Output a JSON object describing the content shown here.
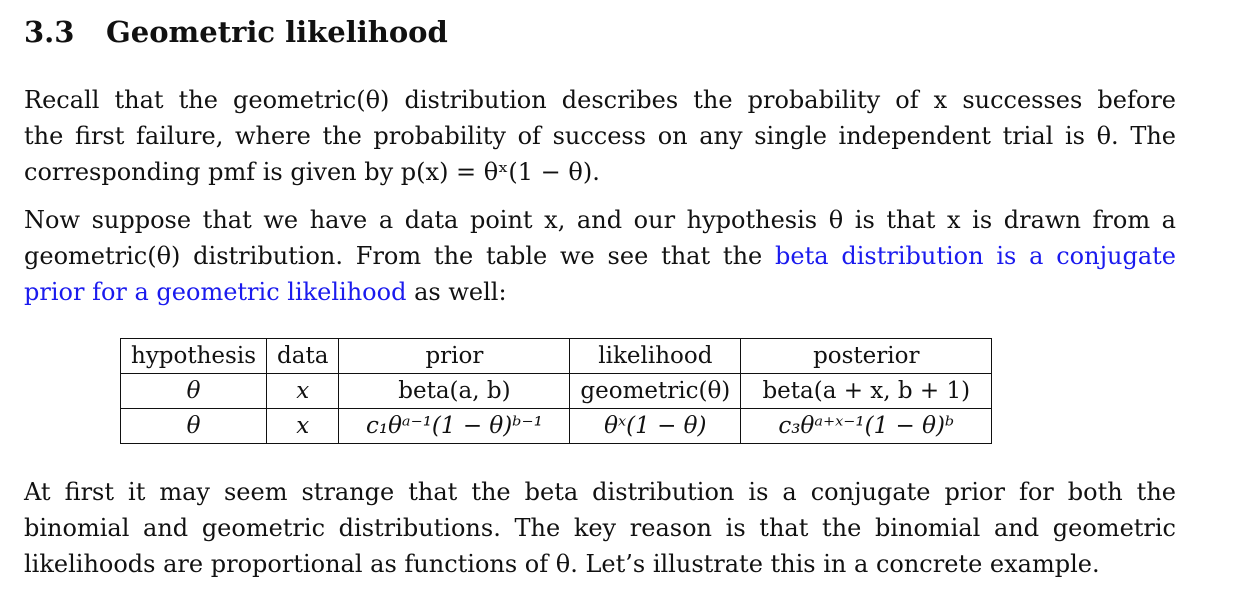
{
  "section": {
    "number": "3.3",
    "title": "Geometric likelihood"
  },
  "paragraphs": {
    "p1": {
      "line1": "Recall that the geometric(θ) distribution describes the probability of x successes before",
      "line2": "the first failure, where the probability of success on any single independent trial is θ. The",
      "line3": "corresponding pmf is given by p(x) = θˣ(1 − θ)."
    },
    "p2": {
      "line1": "Now suppose that we have a data point x, and our hypothesis θ is that x is drawn from a",
      "line2_text": "geometric(θ) distribution. From the table we see that the",
      "line2_link": "beta distribution is a conjugate",
      "line3_link": "prior for a geometric likelihood",
      "line3_text": "as well:"
    },
    "p3": {
      "line1": "At first it may seem strange that the beta distribution is a conjugate prior for both the",
      "line2": "binomial and geometric distributions. The key reason is that the binomial and geometric",
      "line3": "likelihoods are proportional as functions of θ. Let’s illustrate this in a concrete example."
    }
  },
  "table": {
    "headers": [
      "hypothesis",
      "data",
      "prior",
      "likelihood",
      "posterior"
    ],
    "rows": [
      [
        "θ",
        "x",
        "beta(a, b)",
        "geometric(θ)",
        "beta(a + x, b + 1)"
      ],
      [
        "θ",
        "x",
        "c₁θᵃ⁻¹(1 − θ)ᵇ⁻¹",
        "θˣ(1 − θ)",
        "c₃θᵃ⁺ˣ⁻¹(1 − θ)ᵇ"
      ]
    ]
  },
  "colors": {
    "link": "#1a1aee",
    "text": "#111111"
  }
}
